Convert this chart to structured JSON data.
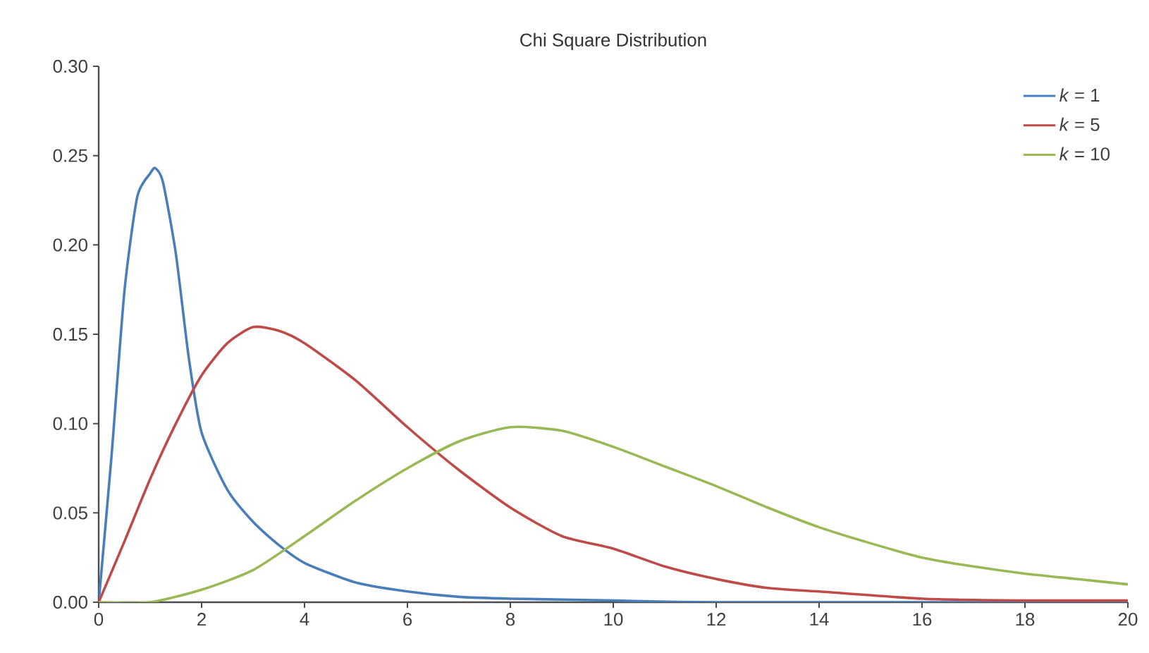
{
  "chart_data": {
    "type": "line",
    "title": "Chi Square Distribution",
    "xlim": [
      0,
      20
    ],
    "xticks": [
      0,
      2,
      4,
      6,
      8,
      10,
      12,
      14,
      16,
      18,
      20
    ],
    "ylim": [
      0,
      0.3
    ],
    "yticks": [
      {
        "value": 0,
        "label": "0.00"
      },
      {
        "value": 0.05,
        "label": "0.05"
      },
      {
        "value": 0.1,
        "label": "0.10"
      },
      {
        "value": 0.15,
        "label": "0.15"
      },
      {
        "value": 0.2,
        "label": "0.20"
      },
      {
        "value": 0.25,
        "label": "0.25"
      },
      {
        "value": 0.3,
        "label": "0.30"
      }
    ],
    "legend": "top right",
    "grid": false,
    "series": [
      {
        "name": "*k* = 1",
        "color": "#4a7ebb",
        "x": [
          0,
          0.25,
          0.5,
          0.75,
          1,
          1.1,
          1.25,
          1.5,
          1.75,
          2,
          2.5,
          3,
          3.5,
          4,
          5,
          6,
          7,
          8,
          10,
          12,
          20
        ],
        "values": [
          0,
          0.082,
          0.174,
          0.227,
          0.24,
          0.243,
          0.235,
          0.195,
          0.137,
          0.095,
          0.063,
          0.045,
          0.032,
          0.022,
          0.011,
          0.006,
          0.003,
          0.002,
          0.001,
          0,
          0
        ]
      },
      {
        "name": "*k* = 5",
        "color": "#be4b48",
        "x": [
          0,
          0.5,
          1,
          1.5,
          2,
          2.5,
          3,
          3.5,
          4,
          5,
          6,
          7,
          8,
          9,
          10,
          11,
          12,
          13,
          14,
          16,
          18,
          20
        ],
        "values": [
          0,
          0.034,
          0.069,
          0.1,
          0.127,
          0.145,
          0.154,
          0.152,
          0.145,
          0.124,
          0.098,
          0.074,
          0.053,
          0.037,
          0.03,
          0.02,
          0.013,
          0.008,
          0.006,
          0.002,
          0.001,
          0.001
        ]
      },
      {
        "name": "*k* = 10",
        "color": "#98b954",
        "x": [
          0,
          1,
          2,
          3,
          4,
          5,
          6,
          7,
          8,
          9,
          10,
          11,
          12,
          13,
          14,
          15,
          16,
          17,
          18,
          19,
          20
        ],
        "values": [
          0,
          0,
          0.007,
          0.018,
          0.037,
          0.057,
          0.075,
          0.09,
          0.098,
          0.096,
          0.087,
          0.076,
          0.065,
          0.053,
          0.042,
          0.033,
          0.025,
          0.02,
          0.016,
          0.013,
          0.01
        ]
      }
    ]
  }
}
